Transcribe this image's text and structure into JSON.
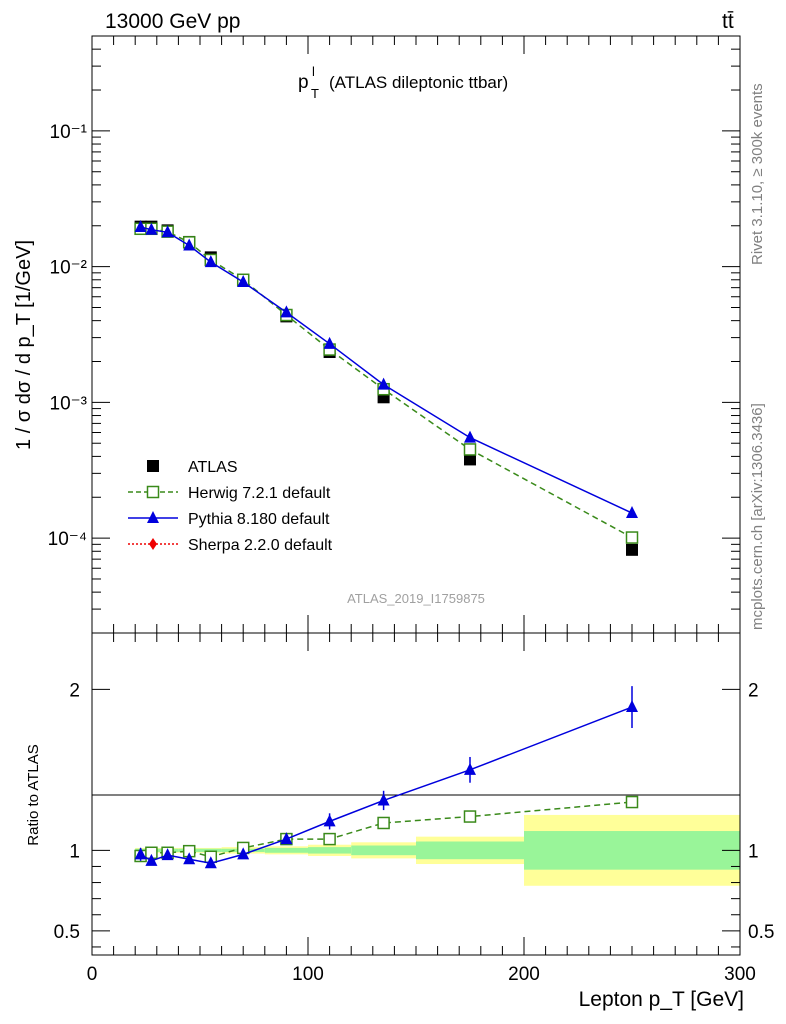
{
  "header": {
    "energy_label": "13000 GeV pp",
    "process_label": "tt̄",
    "plot_title_main": "p",
    "plot_title_sup": "l",
    "plot_title_sub": "T",
    "plot_title_rest": "(ATLAS dileptonic ttbar)",
    "analysis_id": "ATLAS_2019_I1759875"
  },
  "side_labels": {
    "rivet": "Rivet 3.1.10, ≥ 300k events",
    "mcplots": "mcplots.cern.ch [arXiv:1306.3436]"
  },
  "colors": {
    "data": "#000000",
    "herwig": "#3a8a1a",
    "pythia": "#0000dd",
    "sherpa": "#ee0000",
    "band_inner": "#99f599",
    "band_outer": "#ffff99"
  },
  "chart_data": [
    {
      "type": "scatter",
      "panel": "main",
      "ylabel": "1 / σ dσ / d p_T [1/GeV]",
      "yscale": "log",
      "xlim": [
        0,
        300
      ],
      "ylim": [
        2e-05,
        0.5
      ],
      "y_tick_labels": [
        "10⁻⁴",
        "10⁻³",
        "10⁻²",
        "10⁻¹"
      ],
      "x": [
        22.5,
        27.5,
        35,
        45,
        55,
        70,
        90,
        110,
        135,
        175,
        250
      ],
      "x_bins": [
        [
          20,
          25
        ],
        [
          25,
          30
        ],
        [
          30,
          40
        ],
        [
          40,
          50
        ],
        [
          50,
          60
        ],
        [
          60,
          80
        ],
        [
          80,
          100
        ],
        [
          100,
          120
        ],
        [
          120,
          150
        ],
        [
          150,
          200
        ],
        [
          200,
          300
        ]
      ],
      "series": [
        {
          "name": "ATLAS",
          "style": "data",
          "values": [
            0.0197,
            0.0197,
            0.0185,
            0.0152,
            0.0117,
            0.0079,
            0.0043,
            0.00235,
            0.00109,
            0.00038,
            8.2e-05
          ]
        },
        {
          "name": "Herwig 7.2.1 default",
          "style": "herwig",
          "values": [
            0.019,
            0.019,
            0.0181,
            0.0151,
            0.0112,
            0.008,
            0.0044,
            0.00245,
            0.00125,
            0.00045,
            0.000101
          ]
        },
        {
          "name": "Pythia 8.180 default",
          "style": "pythia",
          "values": [
            0.0196,
            0.0187,
            0.0179,
            0.0143,
            0.0108,
            0.0077,
            0.0046,
            0.0027,
            0.00135,
            0.00055,
            0.000153
          ]
        },
        {
          "name": "Sherpa 2.2.0 default",
          "style": "sherpa",
          "values": []
        }
      ]
    },
    {
      "type": "line",
      "panel": "ratio",
      "ylabel": "Ratio to ATLAS",
      "xlabel": "Lepton p_T [GeV]",
      "xlim": [
        0,
        300
      ],
      "ylim": [
        0.35,
        2.35
      ],
      "x_ticks": [
        0,
        100,
        200,
        300
      ],
      "y_ticks": [
        0.5,
        1,
        2
      ],
      "x": [
        22.5,
        27.5,
        35,
        45,
        55,
        70,
        90,
        110,
        135,
        175,
        250
      ],
      "series": [
        {
          "name": "Herwig 7.2.1 default",
          "style": "herwig",
          "values": [
            0.965,
            0.985,
            0.985,
            0.995,
            0.96,
            1.015,
            1.07,
            1.07,
            1.17,
            1.21,
            1.3
          ]
        },
        {
          "name": "Pythia 8.180 default",
          "style": "pythia",
          "values": [
            0.975,
            0.935,
            0.97,
            0.945,
            0.92,
            0.975,
            1.07,
            1.18,
            1.31,
            1.5,
            1.89
          ]
        },
        {
          "name": "Pythia 8.180 default errors",
          "style": "pythia_err",
          "values": [
            0.04,
            0.02,
            0.02,
            0.02,
            0.02,
            0.025,
            0.03,
            0.05,
            0.06,
            0.08,
            0.13
          ]
        }
      ],
      "bands": {
        "bins": [
          [
            20,
            25
          ],
          [
            25,
            30
          ],
          [
            30,
            40
          ],
          [
            40,
            50
          ],
          [
            50,
            60
          ],
          [
            60,
            80
          ],
          [
            80,
            100
          ],
          [
            100,
            120
          ],
          [
            120,
            150
          ],
          [
            150,
            200
          ],
          [
            200,
            300
          ]
        ],
        "inner": [
          0.01,
          0.01,
          0.01,
          0.01,
          0.01,
          0.01,
          0.015,
          0.02,
          0.03,
          0.055,
          0.12
        ],
        "outer": [
          0.015,
          0.015,
          0.015,
          0.015,
          0.015,
          0.02,
          0.025,
          0.035,
          0.05,
          0.085,
          0.22
        ]
      }
    }
  ]
}
